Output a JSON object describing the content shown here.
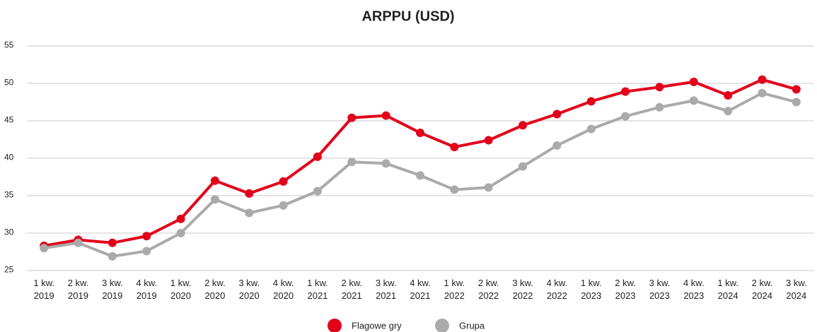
{
  "chart_data": {
    "type": "line",
    "title": "ARPPU (USD)",
    "categories": [
      "1 kw. 2019",
      "2 kw. 2019",
      "3 kw. 2019",
      "4 kw. 2019",
      "1 kw. 2020",
      "2 kw. 2020",
      "3 kw. 2020",
      "4 kw. 2020",
      "1 kw. 2021",
      "2 kw. 2021",
      "3 kw. 2021",
      "4 kw. 2021",
      "1 kw. 2022",
      "2 kw. 2022",
      "3 kw. 2022",
      "4 kw. 2022",
      "1 kw. 2023",
      "2 kw. 2023",
      "3 kw. 2023",
      "4 kw. 2023",
      "1 kw. 2024",
      "2 kw. 2024",
      "3 kw. 2024"
    ],
    "series": [
      {
        "name": "Flagowe gry",
        "color": "#e2001a",
        "values": [
          28.3,
          29.1,
          28.7,
          29.6,
          31.9,
          37.0,
          35.3,
          36.9,
          40.2,
          45.4,
          45.7,
          43.4,
          41.5,
          42.4,
          44.4,
          45.9,
          47.6,
          48.9,
          49.5,
          50.2,
          48.4,
          50.5,
          49.2
        ]
      },
      {
        "name": "Grupa",
        "color": "#aaaaaa",
        "values": [
          28.0,
          28.7,
          26.9,
          27.6,
          30.0,
          34.5,
          32.7,
          33.7,
          35.6,
          39.5,
          39.3,
          37.7,
          35.8,
          36.1,
          38.9,
          41.7,
          43.9,
          45.6,
          46.8,
          47.7,
          46.3,
          48.7,
          47.5
        ]
      }
    ],
    "ylim": [
      25,
      55
    ],
    "yticks": [
      25,
      30,
      35,
      40,
      45,
      50,
      55
    ],
    "grid": true,
    "legend": "bottom"
  }
}
